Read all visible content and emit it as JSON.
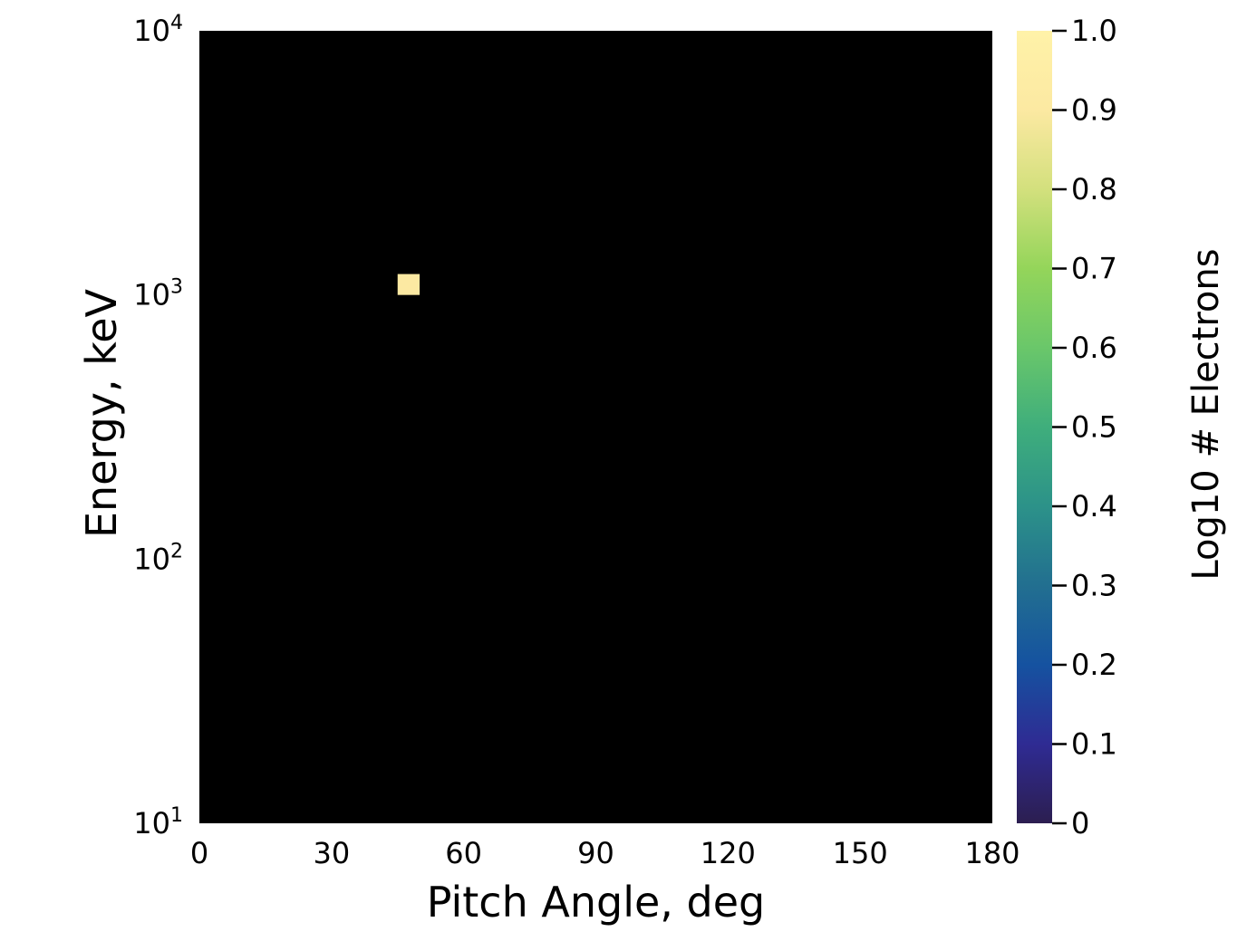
{
  "chart_data": {
    "type": "heatmap",
    "title": "",
    "xlabel": "Pitch Angle, deg",
    "ylabel": "Energy, keV",
    "xlim": [
      0,
      180
    ],
    "ylim": [
      10,
      10000
    ],
    "y_scale": "log",
    "x_ticks": [
      "0",
      "30",
      "60",
      "90",
      "120",
      "150",
      "180"
    ],
    "y_ticks": [
      {
        "value": 10,
        "base": "10",
        "exp": "1"
      },
      {
        "value": 100,
        "base": "10",
        "exp": "2"
      },
      {
        "value": 1000,
        "base": "10",
        "exp": "3"
      },
      {
        "value": 10000,
        "base": "10",
        "exp": "4"
      }
    ],
    "background_color": "#000000",
    "colormap": [
      "#2c1e50",
      "#2f2b93",
      "#1552a0",
      "#226f90",
      "#2c9289",
      "#3fae7c",
      "#6ac76a",
      "#94d55a",
      "#d3e07d",
      "#fce9a2",
      "#fff2a8"
    ],
    "colorbar": {
      "label": "Log10 # Electrons",
      "range": [
        0,
        1.0
      ],
      "ticks": [
        "0",
        "0.1",
        "0.2",
        "0.3",
        "0.4",
        "0.5",
        "0.6",
        "0.7",
        "0.8",
        "0.9",
        "1.0"
      ]
    },
    "cells": [
      {
        "x0": 45,
        "x1": 50,
        "y0": 1000,
        "y1": 1200,
        "value": 1.0
      }
    ],
    "grid": false,
    "legend": "none"
  }
}
